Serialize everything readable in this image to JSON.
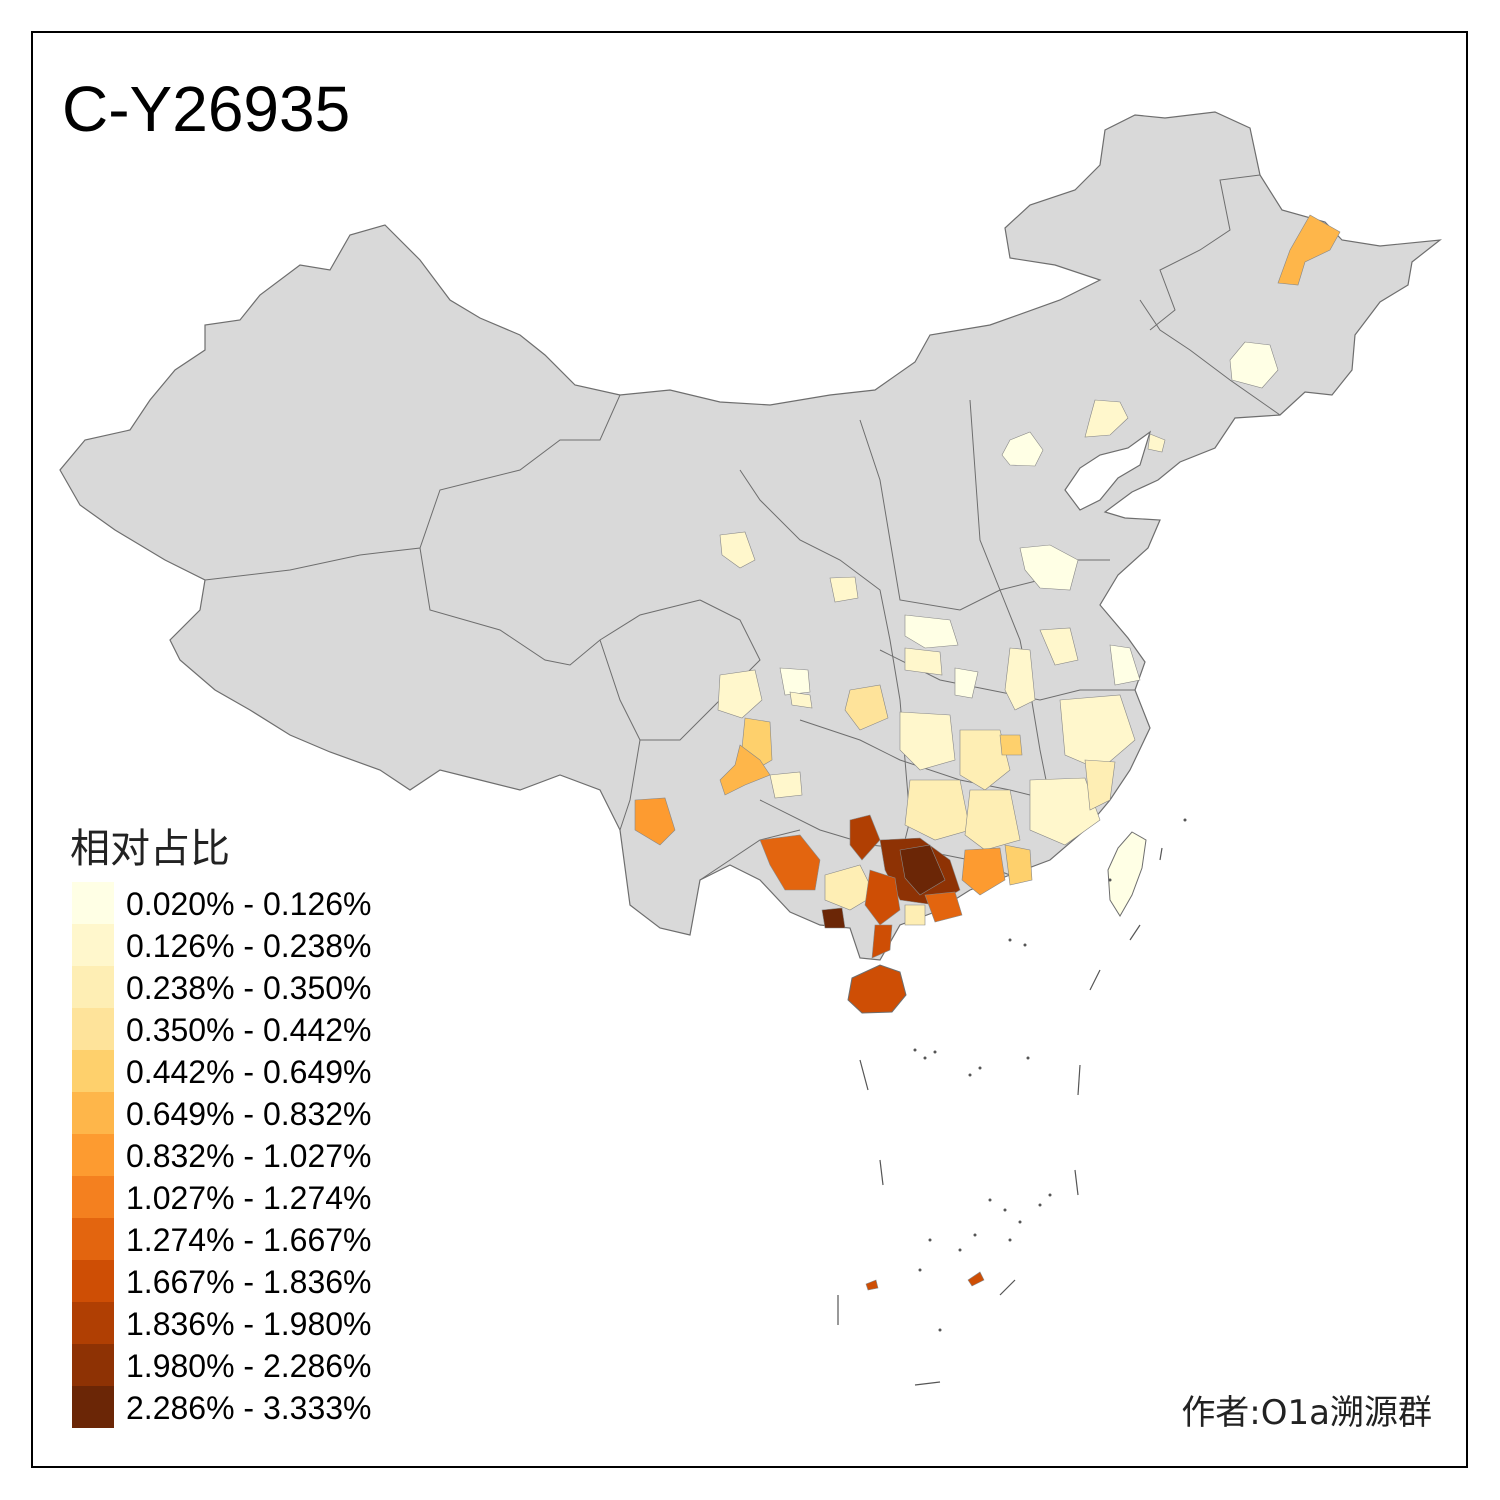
{
  "title": "C-Y26935",
  "legend": {
    "title": "相对占比",
    "items": [
      {
        "label": "0.020% - 0.126%",
        "color": "#ffffe5"
      },
      {
        "label": "0.126% - 0.238%",
        "color": "#fff7cc"
      },
      {
        "label": "0.238% - 0.350%",
        "color": "#feeeb4"
      },
      {
        "label": "0.350% - 0.442%",
        "color": "#fee39a"
      },
      {
        "label": "0.442% - 0.649%",
        "color": "#fed06c"
      },
      {
        "label": "0.649% - 0.832%",
        "color": "#feb64a"
      },
      {
        "label": "0.832% - 1.027%",
        "color": "#fd9b30"
      },
      {
        "label": "1.027% - 1.274%",
        "color": "#f4801f"
      },
      {
        "label": "1.274% - 1.667%",
        "color": "#e3650f"
      },
      {
        "label": "1.667% - 1.836%",
        "color": "#ce4e05"
      },
      {
        "label": "1.836% - 1.980%",
        "color": "#b03f03"
      },
      {
        "label": "1.980% - 2.286%",
        "color": "#8e3204"
      },
      {
        "label": "2.286% - 3.333%",
        "color": "#6b2606"
      }
    ]
  },
  "author": "作者:O1a溯源群",
  "colors": {
    "land": "#d9d9d9",
    "border": "#6e6e6e",
    "frame": "#000000"
  }
}
